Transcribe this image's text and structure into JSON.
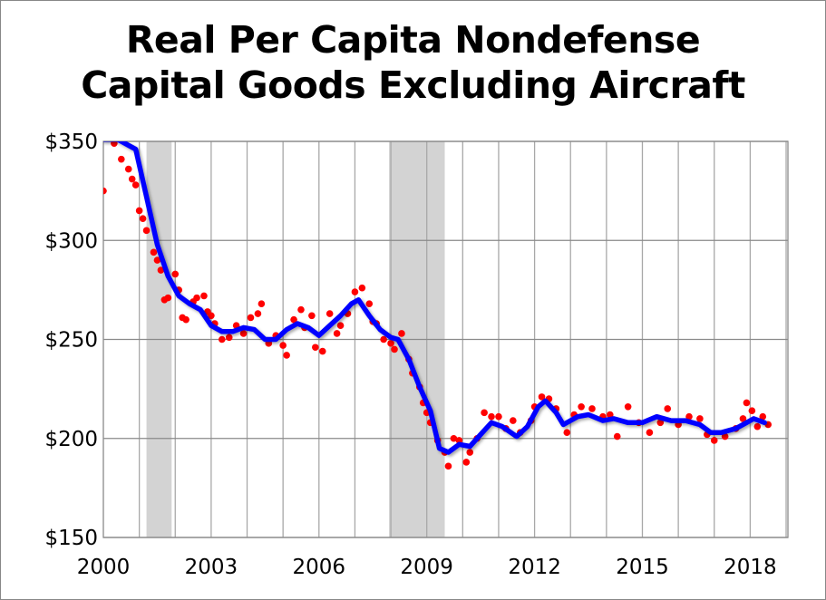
{
  "chart_data": {
    "type": "scatter+line",
    "title_lines": [
      "Real Per Capita Nondefense",
      "Capital Goods Excluding Aircraft"
    ],
    "xlim": [
      2000,
      2019.05
    ],
    "ylim": [
      150,
      350
    ],
    "xticks": [
      2000,
      2003,
      2006,
      2009,
      2012,
      2015,
      2018
    ],
    "xtick_labels": [
      "2000",
      "2003",
      "2006",
      "2009",
      "2012",
      "2015",
      "2018"
    ],
    "yticks": [
      150,
      200,
      250,
      300,
      350
    ],
    "ytick_labels": [
      "$150",
      "$200",
      "$250",
      "$300",
      "$350"
    ],
    "grid": true,
    "recessions": [
      [
        2001.2,
        2001.9
      ],
      [
        2007.95,
        2009.5
      ]
    ],
    "colors": {
      "scatter": "#ff0000",
      "line": "#0000ff",
      "recession": "#d3d3d3"
    },
    "line_series": [
      [
        2000,
        351
      ],
      [
        2000.4,
        351
      ],
      [
        2000.6,
        349
      ],
      [
        2000.9,
        346
      ],
      [
        2001.2,
        322
      ],
      [
        2001.5,
        298
      ],
      [
        2001.8,
        282
      ],
      [
        2002.1,
        272
      ],
      [
        2002.4,
        268
      ],
      [
        2002.7,
        265
      ],
      [
        2003.0,
        257
      ],
      [
        2003.3,
        254
      ],
      [
        2003.6,
        254
      ],
      [
        2003.9,
        256
      ],
      [
        2004.2,
        255
      ],
      [
        2004.5,
        250
      ],
      [
        2004.8,
        250
      ],
      [
        2005.1,
        255
      ],
      [
        2005.4,
        258
      ],
      [
        2005.7,
        256
      ],
      [
        2006.0,
        252
      ],
      [
        2006.3,
        257
      ],
      [
        2006.6,
        262
      ],
      [
        2006.9,
        268
      ],
      [
        2007.1,
        270
      ],
      [
        2007.4,
        262
      ],
      [
        2007.7,
        255
      ],
      [
        2008.0,
        251
      ],
      [
        2008.2,
        250
      ],
      [
        2008.5,
        240
      ],
      [
        2008.8,
        226
      ],
      [
        2009.1,
        214
      ],
      [
        2009.35,
        195
      ],
      [
        2009.6,
        193
      ],
      [
        2009.9,
        197
      ],
      [
        2010.2,
        196
      ],
      [
        2010.5,
        202
      ],
      [
        2010.8,
        208
      ],
      [
        2011.1,
        206
      ],
      [
        2011.5,
        201
      ],
      [
        2011.8,
        206
      ],
      [
        2012.1,
        216
      ],
      [
        2012.3,
        219
      ],
      [
        2012.6,
        213
      ],
      [
        2012.8,
        207
      ],
      [
        2013.2,
        211
      ],
      [
        2013.5,
        212
      ],
      [
        2013.9,
        209
      ],
      [
        2014.2,
        210
      ],
      [
        2014.6,
        208
      ],
      [
        2015.0,
        208
      ],
      [
        2015.4,
        211
      ],
      [
        2015.8,
        209
      ],
      [
        2016.2,
        209
      ],
      [
        2016.6,
        207
      ],
      [
        2016.9,
        203
      ],
      [
        2017.2,
        203
      ],
      [
        2017.6,
        205
      ],
      [
        2017.9,
        208
      ],
      [
        2018.1,
        210
      ],
      [
        2018.4,
        208
      ]
    ],
    "scatter_series": [
      [
        2000.0,
        325
      ],
      [
        2000.3,
        349
      ],
      [
        2000.5,
        341
      ],
      [
        2000.7,
        336
      ],
      [
        2000.8,
        331
      ],
      [
        2000.9,
        328
      ],
      [
        2001.0,
        315
      ],
      [
        2001.1,
        311
      ],
      [
        2001.2,
        305
      ],
      [
        2001.4,
        294
      ],
      [
        2001.5,
        290
      ],
      [
        2001.6,
        285
      ],
      [
        2001.7,
        270
      ],
      [
        2001.8,
        271
      ],
      [
        2002.0,
        283
      ],
      [
        2002.1,
        275
      ],
      [
        2002.2,
        261
      ],
      [
        2002.3,
        260
      ],
      [
        2002.5,
        269
      ],
      [
        2002.6,
        271
      ],
      [
        2002.8,
        272
      ],
      [
        2002.9,
        264
      ],
      [
        2003.0,
        262
      ],
      [
        2003.1,
        258
      ],
      [
        2003.3,
        250
      ],
      [
        2003.5,
        251
      ],
      [
        2003.7,
        257
      ],
      [
        2003.9,
        253
      ],
      [
        2004.1,
        261
      ],
      [
        2004.3,
        263
      ],
      [
        2004.4,
        268
      ],
      [
        2004.6,
        248
      ],
      [
        2004.8,
        252
      ],
      [
        2005.0,
        247
      ],
      [
        2005.1,
        242
      ],
      [
        2005.3,
        260
      ],
      [
        2005.5,
        265
      ],
      [
        2005.6,
        256
      ],
      [
        2005.8,
        262
      ],
      [
        2005.9,
        246
      ],
      [
        2006.1,
        244
      ],
      [
        2006.3,
        263
      ],
      [
        2006.5,
        253
      ],
      [
        2006.6,
        257
      ],
      [
        2006.8,
        263
      ],
      [
        2007.0,
        274
      ],
      [
        2007.2,
        276
      ],
      [
        2007.4,
        268
      ],
      [
        2007.5,
        259
      ],
      [
        2007.6,
        258
      ],
      [
        2007.8,
        250
      ],
      [
        2008.0,
        248
      ],
      [
        2008.1,
        245
      ],
      [
        2008.3,
        253
      ],
      [
        2008.5,
        240
      ],
      [
        2008.6,
        233
      ],
      [
        2008.8,
        226
      ],
      [
        2008.9,
        218
      ],
      [
        2009.0,
        213
      ],
      [
        2009.1,
        208
      ],
      [
        2009.3,
        199
      ],
      [
        2009.5,
        193
      ],
      [
        2009.6,
        186
      ],
      [
        2009.75,
        200
      ],
      [
        2009.9,
        199
      ],
      [
        2010.1,
        188
      ],
      [
        2010.2,
        193
      ],
      [
        2010.4,
        200
      ],
      [
        2010.6,
        213
      ],
      [
        2010.8,
        211
      ],
      [
        2011.0,
        211
      ],
      [
        2011.2,
        205
      ],
      [
        2011.4,
        209
      ],
      [
        2011.6,
        203
      ],
      [
        2011.9,
        209
      ],
      [
        2012.0,
        216
      ],
      [
        2012.2,
        221
      ],
      [
        2012.4,
        220
      ],
      [
        2012.6,
        215
      ],
      [
        2012.9,
        203
      ],
      [
        2013.1,
        212
      ],
      [
        2013.3,
        216
      ],
      [
        2013.6,
        215
      ],
      [
        2013.9,
        211
      ],
      [
        2014.1,
        212
      ],
      [
        2014.3,
        201
      ],
      [
        2014.6,
        216
      ],
      [
        2014.9,
        208
      ],
      [
        2015.2,
        203
      ],
      [
        2015.5,
        208
      ],
      [
        2015.7,
        215
      ],
      [
        2016.0,
        207
      ],
      [
        2016.3,
        211
      ],
      [
        2016.6,
        210
      ],
      [
        2016.8,
        202
      ],
      [
        2017.0,
        199
      ],
      [
        2017.3,
        201
      ],
      [
        2017.6,
        205
      ],
      [
        2017.8,
        210
      ],
      [
        2017.9,
        218
      ],
      [
        2018.05,
        214
      ],
      [
        2018.2,
        206
      ],
      [
        2018.35,
        211
      ],
      [
        2018.5,
        207
      ]
    ]
  }
}
